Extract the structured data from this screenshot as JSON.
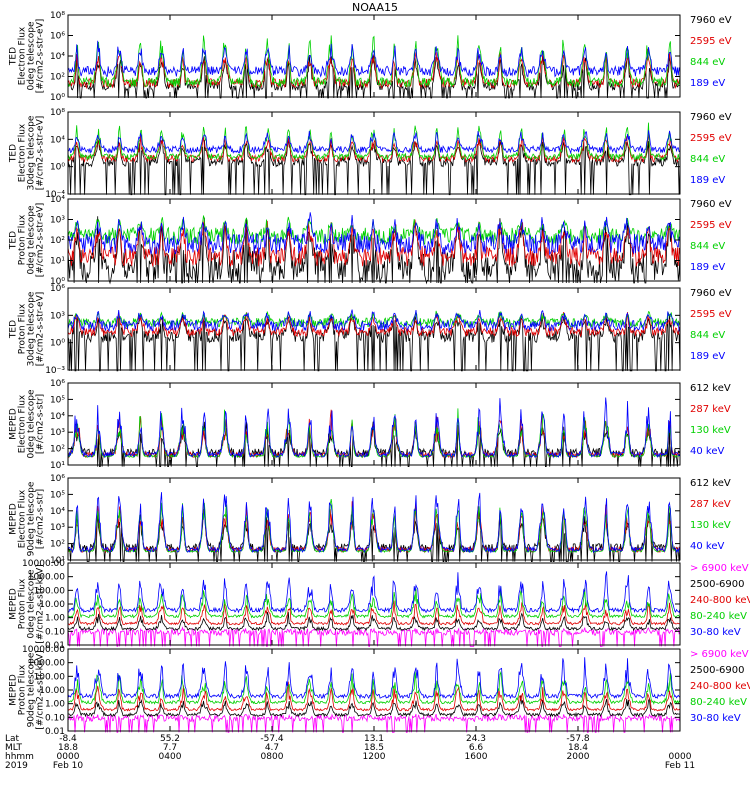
{
  "title": "NOAA15",
  "chart_data": [
    {
      "type": "line",
      "ylabel": [
        "TED",
        "Electron Flux",
        "0deg telescope",
        "[#/cm2-s-str-eV]"
      ],
      "scale": "log",
      "ylim": [
        1,
        100000000
      ],
      "yticks": [
        {
          "v": 1,
          "label": "10⁰"
        },
        {
          "v": 100,
          "label": "10²"
        },
        {
          "v": 10000,
          "label": "10⁴"
        },
        {
          "v": 1000000,
          "label": "10⁶"
        },
        {
          "v": 100000000,
          "label": "10⁸"
        }
      ],
      "series": [
        {
          "name": "7960 eV",
          "color": "#000000",
          "base": [
            4,
            30
          ],
          "peak": [
            400,
            40000
          ]
        },
        {
          "name": "2595 eV",
          "color": "#e00000",
          "base": [
            8,
            60
          ],
          "peak": [
            1000,
            100000
          ]
        },
        {
          "name": "844 eV",
          "color": "#00d000",
          "base": [
            10,
            80
          ],
          "peak": [
            10000,
            5000000
          ]
        },
        {
          "name": "189 eV",
          "color": "#0000ff",
          "base": [
            100,
            1000
          ],
          "peak": [
            3000,
            500000
          ]
        }
      ]
    },
    {
      "type": "line",
      "ylabel": [
        "TED",
        "Electron Flux",
        "30deg telescope",
        "[#/cm2-s-str-eV]"
      ],
      "scale": "log",
      "ylim": [
        0.0001,
        100000000
      ],
      "yticks": [
        {
          "v": 0.0001,
          "label": "10⁻⁴"
        },
        {
          "v": 1,
          "label": "10⁰"
        },
        {
          "v": 10000,
          "label": "10⁴"
        },
        {
          "v": 100000000,
          "label": "10⁸"
        }
      ],
      "series": [
        {
          "name": "7960 eV",
          "color": "#000000",
          "base": [
            1,
            20
          ],
          "peak": [
            300,
            30000
          ]
        },
        {
          "name": "2595 eV",
          "color": "#e00000",
          "base": [
            5,
            50
          ],
          "peak": [
            1000,
            100000
          ]
        },
        {
          "name": "844 eV",
          "color": "#00d000",
          "base": [
            10,
            80
          ],
          "peak": [
            10000,
            5000000
          ]
        },
        {
          "name": "189 eV",
          "color": "#0000ff",
          "base": [
            100,
            1000
          ],
          "peak": [
            3000,
            500000
          ]
        }
      ]
    },
    {
      "type": "line",
      "ylabel": [
        "TED",
        "Proton Flux",
        "0deg telescope",
        "[#/cm2-s-str-eV]"
      ],
      "scale": "log",
      "ylim": [
        1,
        10000
      ],
      "yticks": [
        {
          "v": 1,
          "label": "10⁰"
        },
        {
          "v": 10,
          "label": "10¹"
        },
        {
          "v": 100,
          "label": "10²"
        },
        {
          "v": 1000,
          "label": "10³"
        },
        {
          "v": 10000,
          "label": "10⁴"
        }
      ],
      "series": [
        {
          "name": "7960 eV",
          "color": "#000000",
          "base": [
            1,
            30
          ],
          "peak": [
            100,
            2000
          ]
        },
        {
          "name": "2595 eV",
          "color": "#e00000",
          "base": [
            5,
            50
          ],
          "peak": [
            100,
            2000
          ]
        },
        {
          "name": "844 eV",
          "color": "#00d000",
          "base": [
            60,
            400
          ],
          "peak": [
            200,
            2000
          ]
        },
        {
          "name": "189 eV",
          "color": "#0000ff",
          "base": [
            20,
            200
          ],
          "peak": [
            200,
            3000
          ]
        }
      ]
    },
    {
      "type": "line",
      "ylabel": [
        "TED",
        "Proton Flux",
        "30deg telescope",
        "[#/cm2-s-str-eV]"
      ],
      "scale": "log",
      "ylim": [
        0.001,
        1000000
      ],
      "yticks": [
        {
          "v": 0.001,
          "label": "10⁻³"
        },
        {
          "v": 1,
          "label": "10⁰"
        },
        {
          "v": 1000,
          "label": "10³"
        },
        {
          "v": 1000000,
          "label": "10⁶"
        }
      ],
      "series": [
        {
          "name": "7960 eV",
          "color": "#000000",
          "base": [
            1,
            30
          ],
          "peak": [
            100,
            3000
          ]
        },
        {
          "name": "2595 eV",
          "color": "#e00000",
          "base": [
            5,
            50
          ],
          "peak": [
            100,
            5000
          ]
        },
        {
          "name": "844 eV",
          "color": "#00d000",
          "base": [
            50,
            500
          ],
          "peak": [
            200,
            5000
          ]
        },
        {
          "name": "189 eV",
          "color": "#0000ff",
          "base": [
            20,
            300
          ],
          "peak": [
            200,
            10000
          ]
        }
      ]
    },
    {
      "type": "line",
      "ylabel": [
        "MEPED",
        "Electron Flux",
        "0deg telescope",
        "[#/cm2-s-str]"
      ],
      "scale": "log",
      "ylim": [
        10,
        1000000
      ],
      "yticks": [
        {
          "v": 10,
          "label": "10¹"
        },
        {
          "v": 100,
          "label": "10²"
        },
        {
          "v": 1000,
          "label": "10³"
        },
        {
          "v": 10000,
          "label": "10⁴"
        },
        {
          "v": 100000,
          "label": "10⁵"
        },
        {
          "v": 1000000,
          "label": "10⁶"
        }
      ],
      "series": [
        {
          "name": "612 keV",
          "color": "#000000",
          "base": [
            30,
            100
          ],
          "peak": [
            100,
            10000
          ]
        },
        {
          "name": "287 keV",
          "color": "#e00000",
          "base": [
            30,
            60
          ],
          "peak": [
            100,
            30000
          ]
        },
        {
          "name": "130 keV",
          "color": "#00d000",
          "base": [
            30,
            40
          ],
          "peak": [
            100,
            60000
          ]
        },
        {
          "name": "40 keV",
          "color": "#0000ff",
          "base": [
            30,
            60
          ],
          "peak": [
            300,
            200000
          ]
        }
      ]
    },
    {
      "type": "line",
      "ylabel": [
        "MEPED",
        "Electron Flux",
        "90deg telescope",
        "[#/cm2-s-str]"
      ],
      "scale": "log",
      "ylim": [
        10,
        1000000
      ],
      "yticks": [
        {
          "v": 10,
          "label": "10¹"
        },
        {
          "v": 100,
          "label": "10²"
        },
        {
          "v": 1000,
          "label": "10³"
        },
        {
          "v": 10000,
          "label": "10⁴"
        },
        {
          "v": 100000,
          "label": "10⁵"
        },
        {
          "v": 1000000,
          "label": "10⁶"
        }
      ],
      "series": [
        {
          "name": "612 keV",
          "color": "#000000",
          "base": [
            30,
            100
          ],
          "peak": [
            300,
            20000
          ]
        },
        {
          "name": "287 keV",
          "color": "#e00000",
          "base": [
            30,
            60
          ],
          "peak": [
            1000,
            60000
          ]
        },
        {
          "name": "130 keV",
          "color": "#00d000",
          "base": [
            30,
            40
          ],
          "peak": [
            3000,
            100000
          ]
        },
        {
          "name": "40 keV",
          "color": "#0000ff",
          "base": [
            30,
            60
          ],
          "peak": [
            5000,
            500000
          ]
        }
      ]
    },
    {
      "type": "line",
      "ylabel": [
        "MEPED",
        "Proton Flux",
        "0deg telescope",
        "[#/cm2-s-str-keV]"
      ],
      "scale": "log",
      "ylim": [
        0.01,
        10000
      ],
      "yticks": [
        {
          "v": 0.01,
          "label": "0.01"
        },
        {
          "v": 0.1,
          "label": "0.10"
        },
        {
          "v": 1,
          "label": "1.00"
        },
        {
          "v": 10,
          "label": "10.00"
        },
        {
          "v": 100,
          "label": "100.00"
        },
        {
          "v": 1000,
          "label": "1000.00"
        },
        {
          "v": 10000,
          "label": "10000.00"
        }
      ],
      "series": [
        {
          "name": "> 6900 keV",
          "color": "#ff00ff",
          "base": [
            0.05,
            0.15
          ],
          "peak": [
            0.03,
            0.2
          ]
        },
        {
          "name": "2500-6900",
          "color": "#000000",
          "base": [
            0.12,
            0.2
          ],
          "peak": [
            0.2,
            3
          ]
        },
        {
          "name": "240-800 keV",
          "color": "#e00000",
          "base": [
            0.3,
            0.45
          ],
          "peak": [
            0.5,
            30
          ]
        },
        {
          "name": "80-240 keV",
          "color": "#00d000",
          "base": [
            1,
            1.6
          ],
          "peak": [
            2,
            300
          ]
        },
        {
          "name": "30-80 keV",
          "color": "#0000ff",
          "base": [
            2.5,
            5
          ],
          "peak": [
            10,
            5000
          ]
        }
      ]
    },
    {
      "type": "line",
      "ylabel": [
        "MEPED",
        "Proton Flux",
        "90deg telescope",
        "[#/cm2-s-str-keV]"
      ],
      "scale": "log",
      "ylim": [
        0.01,
        10000
      ],
      "yticks": [
        {
          "v": 0.01,
          "label": "0.01"
        },
        {
          "v": 0.1,
          "label": "0.10"
        },
        {
          "v": 1,
          "label": "1.00"
        },
        {
          "v": 10,
          "label": "10.00"
        },
        {
          "v": 100,
          "label": "100.00"
        },
        {
          "v": 1000,
          "label": "1000.00"
        },
        {
          "v": 10000,
          "label": "10000.00"
        }
      ],
      "series": [
        {
          "name": "> 6900 keV",
          "color": "#ff00ff",
          "base": [
            0.05,
            0.15
          ],
          "peak": [
            0.03,
            0.2
          ]
        },
        {
          "name": "2500-6900",
          "color": "#000000",
          "base": [
            0.12,
            0.2
          ],
          "peak": [
            0.2,
            5
          ]
        },
        {
          "name": "240-800 keV",
          "color": "#e00000",
          "base": [
            0.3,
            0.45
          ],
          "peak": [
            0.5,
            50
          ]
        },
        {
          "name": "80-240 keV",
          "color": "#00d000",
          "base": [
            1,
            1.6
          ],
          "peak": [
            2,
            500
          ]
        },
        {
          "name": "30-80 keV",
          "color": "#0000ff",
          "base": [
            2.5,
            5
          ],
          "peak": [
            10,
            5000
          ]
        }
      ]
    }
  ],
  "xaxis": {
    "row_labels": [
      "Lat",
      "MLT",
      "hhmm",
      "2019"
    ],
    "columns": [
      {
        "hours": 0,
        "lat": "-8.4",
        "mlt": "18.8",
        "hhmm": "0000",
        "date": "Feb 10"
      },
      {
        "hours": 4,
        "lat": "55.2",
        "mlt": "7.7",
        "hhmm": "0400",
        "date": ""
      },
      {
        "hours": 8,
        "lat": "-57.4",
        "mlt": "4.7",
        "hhmm": "0800",
        "date": ""
      },
      {
        "hours": 12,
        "lat": "13.1",
        "mlt": "18.5",
        "hhmm": "1200",
        "date": ""
      },
      {
        "hours": 16,
        "lat": "24.3",
        "mlt": "6.6",
        "hhmm": "1600",
        "date": ""
      },
      {
        "hours": 20,
        "lat": "-57.8",
        "mlt": "18.4",
        "hhmm": "2000",
        "date": ""
      },
      {
        "hours": 24,
        "lat": "",
        "mlt": "",
        "hhmm": "0000",
        "date": "Feb 11"
      }
    ],
    "xlim_hours": [
      0,
      24
    ]
  }
}
